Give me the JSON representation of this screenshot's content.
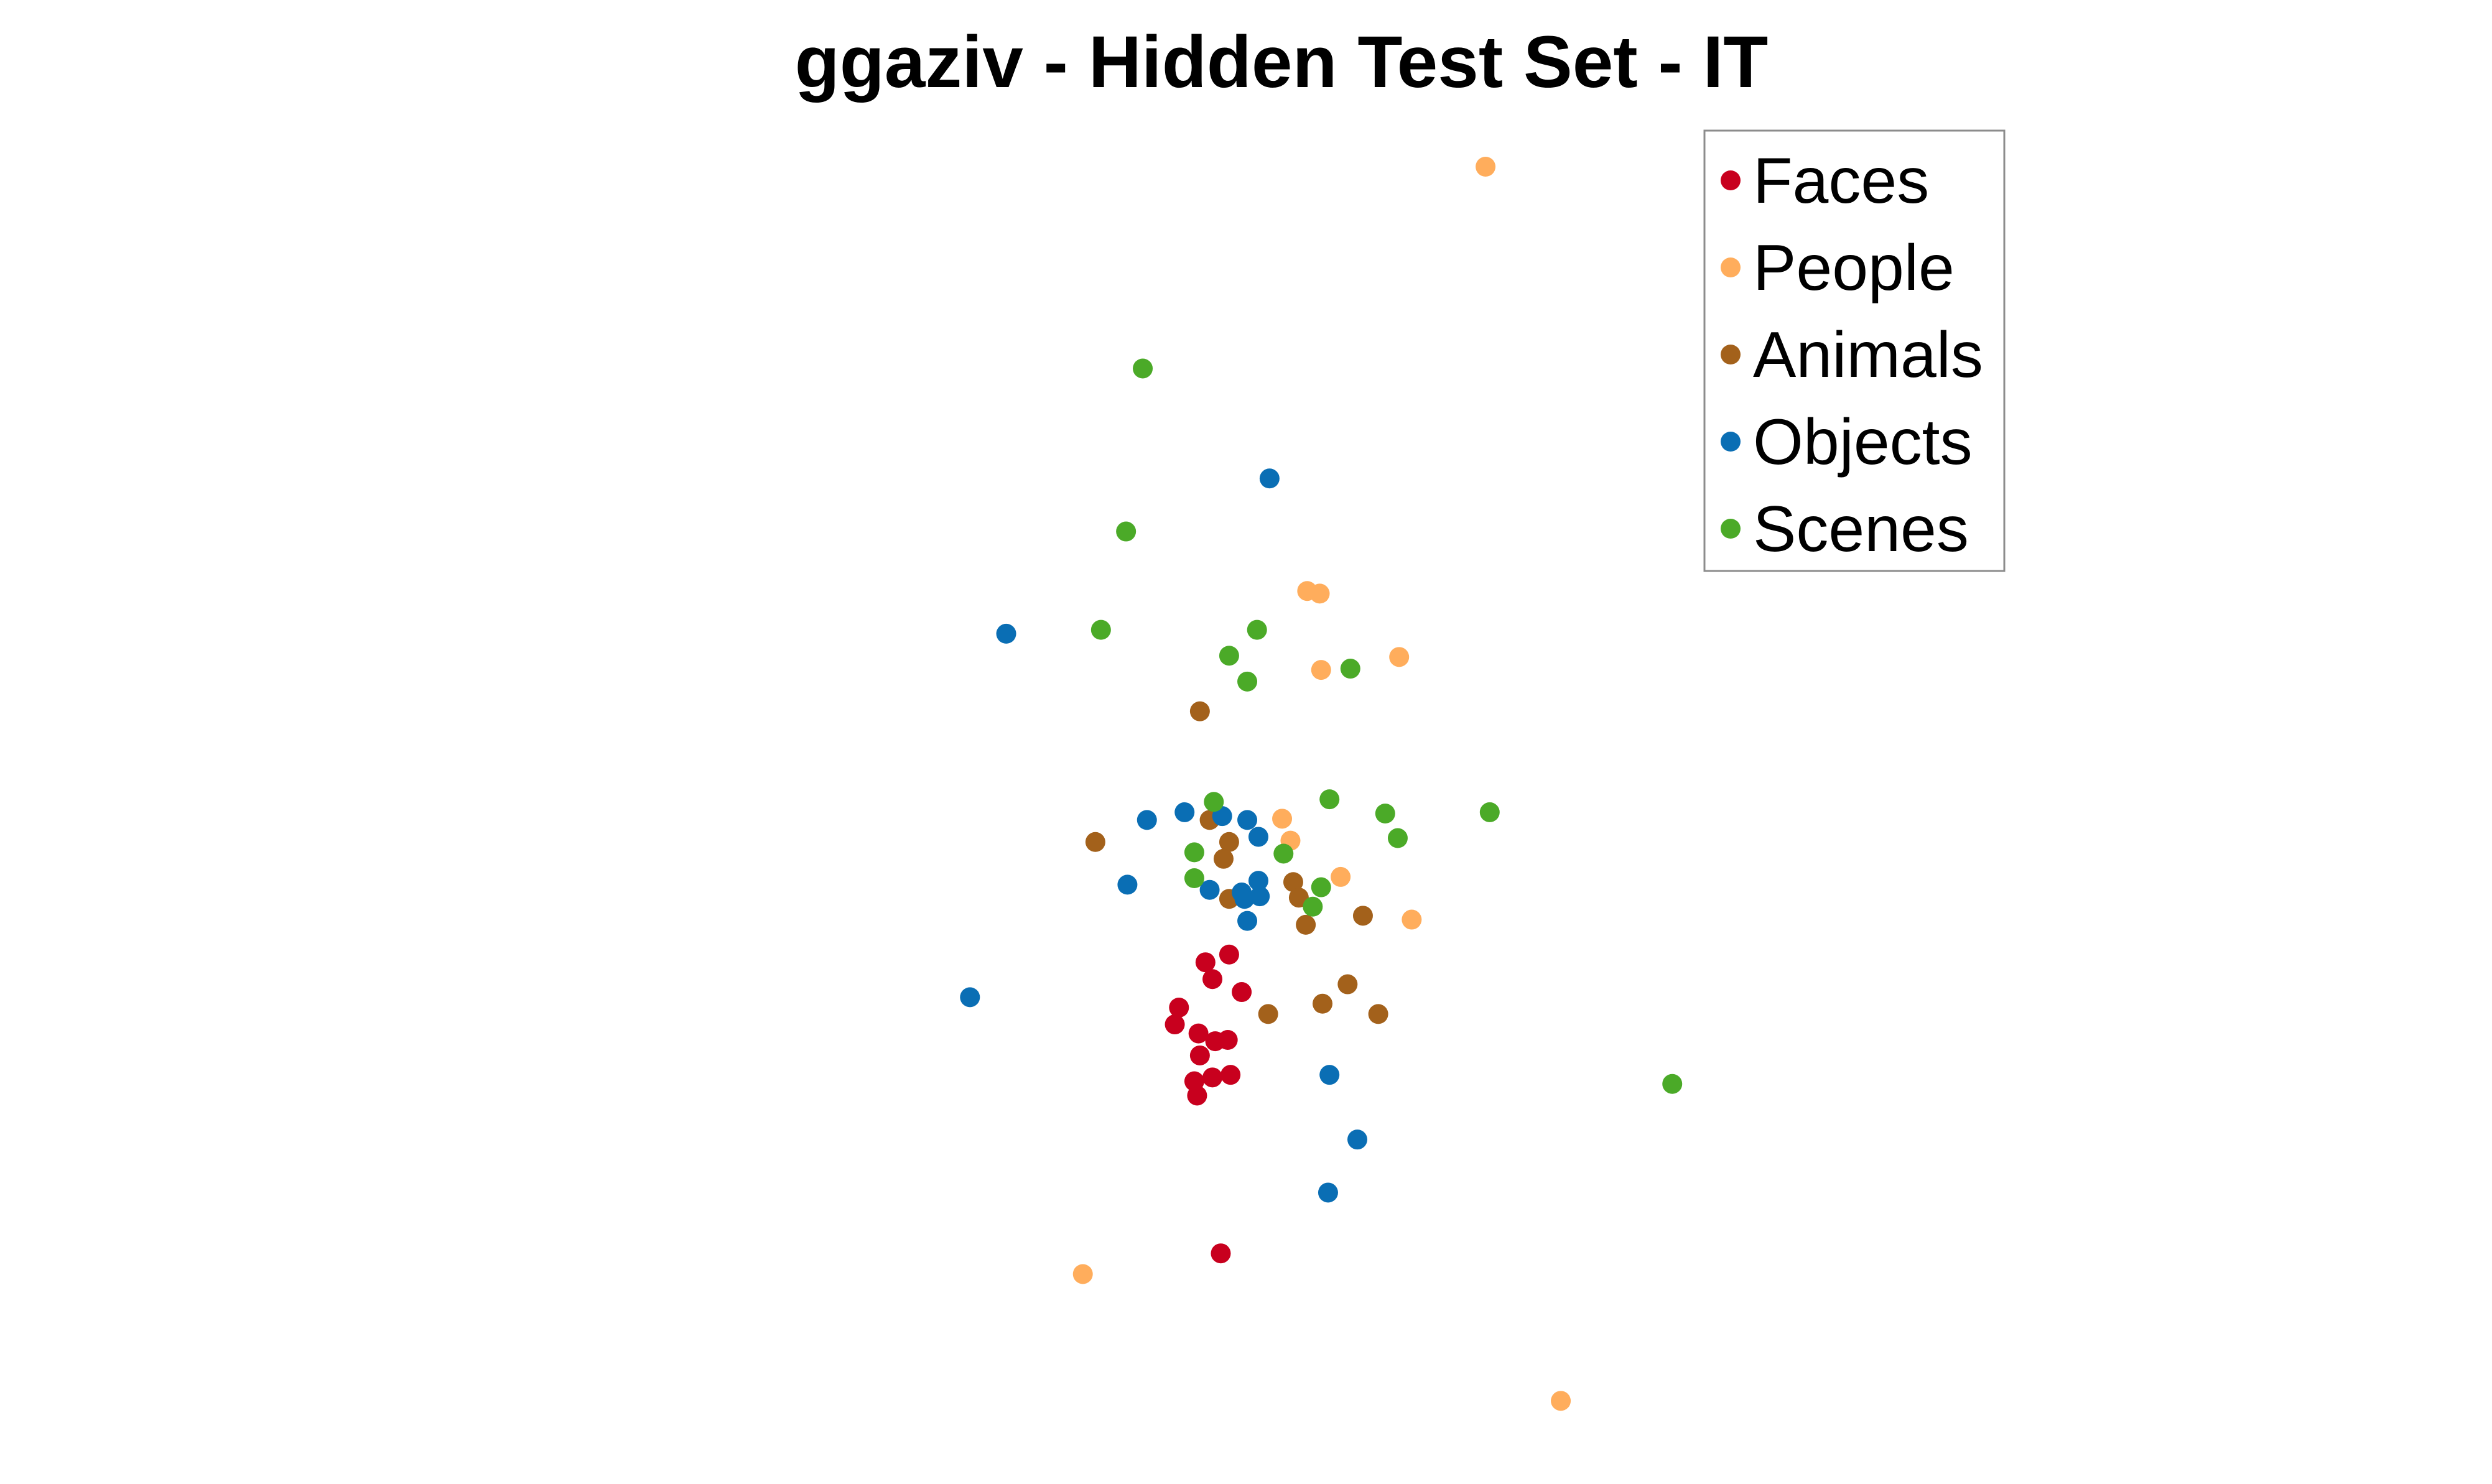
{
  "chart_data": {
    "type": "scatter",
    "title": "ggaziv - Hidden Test Set - IT",
    "xlabel": "",
    "ylabel": "",
    "axes_visible": false,
    "grid": false,
    "legend_position": "top-right",
    "xlim": [
      0,
      100
    ],
    "ylim": [
      0,
      100
    ],
    "series": [
      {
        "name": "Faces",
        "color": "#C8001E",
        "points": [
          [
            44.1,
            41.0
          ],
          [
            45.8,
            41.6
          ],
          [
            44.6,
            39.7
          ],
          [
            46.7,
            38.7
          ],
          [
            42.2,
            37.5
          ],
          [
            41.9,
            36.2
          ],
          [
            43.6,
            35.5
          ],
          [
            44.8,
            34.9
          ],
          [
            45.7,
            35.0
          ],
          [
            43.7,
            33.8
          ],
          [
            43.3,
            31.8
          ],
          [
            44.6,
            32.1
          ],
          [
            45.9,
            32.3
          ],
          [
            43.5,
            30.7
          ],
          [
            45.2,
            18.5
          ]
        ]
      },
      {
        "name": "People",
        "color": "#FFAD5C",
        "points": [
          [
            64.2,
            102.5
          ],
          [
            51.4,
            69.7
          ],
          [
            52.3,
            69.5
          ],
          [
            58.0,
            64.6
          ],
          [
            52.4,
            63.6
          ],
          [
            49.6,
            52.1
          ],
          [
            50.2,
            50.4
          ],
          [
            53.8,
            47.6
          ],
          [
            58.9,
            44.3
          ],
          [
            35.3,
            16.9
          ],
          [
            69.6,
            7.1
          ]
        ]
      },
      {
        "name": "Animals",
        "color": "#A3611B",
        "points": [
          [
            43.7,
            60.4
          ],
          [
            44.4,
            52.0
          ],
          [
            45.8,
            50.3
          ],
          [
            45.4,
            49.0
          ],
          [
            36.2,
            50.3
          ],
          [
            50.4,
            47.2
          ],
          [
            50.8,
            46.0
          ],
          [
            45.8,
            45.9
          ],
          [
            55.4,
            44.6
          ],
          [
            51.3,
            43.9
          ],
          [
            54.3,
            39.3
          ],
          [
            52.5,
            37.8
          ],
          [
            48.6,
            37.0
          ],
          [
            56.5,
            37.0
          ]
        ]
      },
      {
        "name": "Objects",
        "color": "#0A6EB4",
        "points": [
          [
            48.7,
            78.4
          ],
          [
            29.8,
            66.4
          ],
          [
            42.6,
            52.6
          ],
          [
            45.3,
            52.3
          ],
          [
            47.1,
            52.0
          ],
          [
            39.9,
            52.0
          ],
          [
            47.9,
            50.7
          ],
          [
            38.5,
            47.0
          ],
          [
            44.4,
            46.6
          ],
          [
            47.9,
            47.3
          ],
          [
            46.7,
            46.4
          ],
          [
            48.0,
            46.1
          ],
          [
            46.9,
            45.9
          ],
          [
            47.1,
            44.2
          ],
          [
            27.2,
            38.3
          ],
          [
            53.0,
            32.3
          ],
          [
            55.0,
            27.3
          ],
          [
            52.9,
            23.2
          ]
        ]
      },
      {
        "name": "Scenes",
        "color": "#4BAA28",
        "points": [
          [
            39.6,
            86.9
          ],
          [
            38.4,
            74.3
          ],
          [
            36.6,
            66.7
          ],
          [
            47.8,
            66.7
          ],
          [
            45.8,
            64.7
          ],
          [
            47.1,
            62.7
          ],
          [
            54.5,
            63.7
          ],
          [
            44.7,
            53.4
          ],
          [
            53.0,
            53.6
          ],
          [
            57.0,
            52.5
          ],
          [
            64.5,
            52.6
          ],
          [
            57.9,
            50.6
          ],
          [
            43.3,
            49.5
          ],
          [
            49.7,
            49.4
          ],
          [
            43.3,
            47.5
          ],
          [
            52.4,
            46.8
          ],
          [
            51.8,
            45.3
          ],
          [
            77.6,
            31.6
          ]
        ]
      }
    ]
  }
}
